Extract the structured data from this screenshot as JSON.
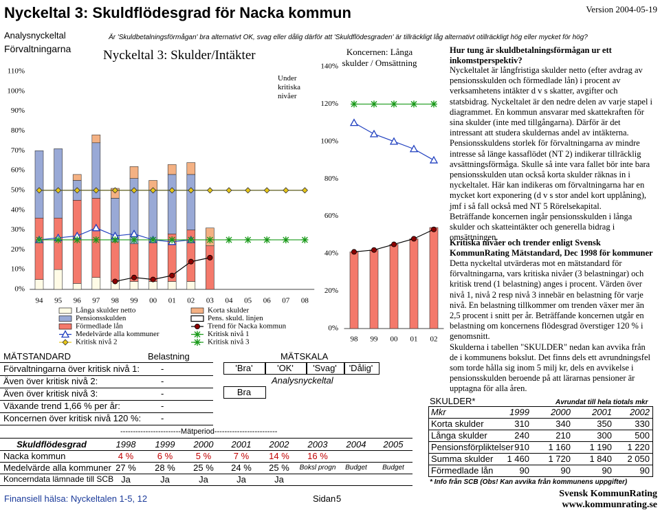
{
  "header": {
    "title": "Nyckeltal 3: Skuldflödesgrad för Nacka kommun",
    "version": "Version 2004-05-19",
    "category": "Analysnyckeltal",
    "question": "Är 'Skuldbetalningsförmågan' bra alternativt OK, svag eller dålig därför att 'Skuldflödesgraden' är tillräckligt låg alternativt otillräckligt hög eller mycket för hög?",
    "section": "Förvaltningarna"
  },
  "chart_data": [
    {
      "type": "bar",
      "title": "Nyckeltal 3: Skulder/Intäkter",
      "annotation": "Under kritiska nivåer",
      "categories": [
        "94",
        "95",
        "96",
        "97",
        "98",
        "99",
        "00",
        "01",
        "02",
        "03",
        "04",
        "05",
        "06",
        "07",
        "08"
      ],
      "ylim": [
        0,
        110
      ],
      "yticks": [
        {
          "value": 0,
          "label": "0%"
        },
        {
          "value": 10,
          "label": "10%"
        },
        {
          "value": 20,
          "label": "20%"
        },
        {
          "value": 30,
          "label": "30%"
        },
        {
          "value": 40,
          "label": "40%"
        },
        {
          "value": 50,
          "label": "50%"
        },
        {
          "value": 60,
          "label": "60%"
        },
        {
          "value": 70,
          "label": "70%"
        },
        {
          "value": 80,
          "label": "80%"
        },
        {
          "value": 90,
          "label": "90%"
        },
        {
          "value": 100,
          "label": "100%"
        },
        {
          "value": 110,
          "label": "110%"
        }
      ],
      "grid": false,
      "legend": "bottom",
      "series": [
        {
          "name": "Långa skulder netto",
          "kind": "bar",
          "color": "#fffbe6",
          "values": [
            5,
            10,
            3,
            6,
            4,
            4,
            4,
            4,
            4,
            0,
            null,
            null,
            null,
            null,
            null
          ]
        },
        {
          "name": "Förmedlade lån",
          "kind": "bar",
          "color": "#f4796b",
          "values": [
            31,
            26,
            42,
            40,
            20,
            19,
            20,
            24,
            26,
            22,
            null,
            null,
            null,
            null,
            null
          ]
        },
        {
          "name": "Pensionsskulden",
          "kind": "bar",
          "color": "#99a9d6",
          "values": [
            34,
            35,
            10,
            28,
            22,
            33,
            26,
            30,
            28,
            0,
            null,
            null,
            null,
            null,
            null
          ]
        },
        {
          "name": "Korta skulder",
          "kind": "bar",
          "color": "#f4b183",
          "values": [
            0,
            0,
            3,
            4,
            5,
            6,
            5,
            5,
            6,
            9,
            null,
            null,
            null,
            null,
            null
          ]
        },
        {
          "name": "Pens. skuld. linjen",
          "kind": "line",
          "color": "#000000",
          "values": [
            null,
            null,
            null,
            null,
            null,
            null,
            null,
            null,
            null,
            null,
            null,
            null,
            null,
            null,
            null
          ]
        },
        {
          "name": "Medelvärde alla kommuner",
          "kind": "line",
          "marker": "triangle",
          "color": "#1f3fbf",
          "values": [
            25,
            26,
            27,
            31,
            27,
            28,
            25,
            24,
            25,
            null,
            null,
            null,
            null,
            null,
            null
          ]
        },
        {
          "name": "Trend för Nacka kommun",
          "kind": "line",
          "marker": "circle",
          "color": "#8b0000",
          "values": [
            null,
            null,
            null,
            null,
            4,
            6,
            5,
            7,
            14,
            16,
            null,
            null,
            null,
            null,
            null
          ]
        },
        {
          "name": "Kritisk nivå 1",
          "kind": "line",
          "marker": "star",
          "color": "#1a9a1a",
          "values": [
            25,
            25,
            25,
            25,
            25,
            25,
            25,
            25,
            25,
            25,
            25,
            25,
            25,
            25,
            25
          ]
        },
        {
          "name": "Kritisk nivå 2",
          "kind": "line",
          "marker": "diamond",
          "color": "#e6c619",
          "values": [
            50,
            50,
            50,
            50,
            50,
            50,
            50,
            50,
            50,
            50,
            50,
            50,
            50,
            50,
            50
          ]
        },
        {
          "name": "Kritisk nivå 3",
          "kind": "line",
          "marker": "star",
          "color": "#1a9a1a",
          "values": [
            null,
            null,
            null,
            null,
            null,
            null,
            null,
            null,
            null,
            null,
            null,
            null,
            null,
            null,
            null
          ]
        }
      ]
    },
    {
      "type": "bar",
      "title": "Koncernen: Långa skulder / Omsättning",
      "categories": [
        "98",
        "99",
        "00",
        "01",
        "02"
      ],
      "ylim": [
        0,
        140
      ],
      "yticks": [
        {
          "value": 0,
          "label": "0%"
        },
        {
          "value": 20,
          "label": "20%"
        },
        {
          "value": 40,
          "label": "40%"
        },
        {
          "value": 60,
          "label": "60%"
        },
        {
          "value": 80,
          "label": "80%"
        },
        {
          "value": 100,
          "label": "100%"
        },
        {
          "value": 120,
          "label": "120%"
        },
        {
          "value": 140,
          "label": "140%"
        }
      ],
      "grid": false,
      "series": [
        {
          "kind": "bar",
          "color": "#f4796b",
          "values": [
            41,
            42,
            45,
            48,
            54
          ]
        },
        {
          "kind": "line",
          "marker": "circle",
          "color": "#8b0000",
          "values": [
            41,
            42,
            45,
            48,
            53
          ]
        },
        {
          "kind": "line",
          "marker": "triangle",
          "color": "#1f3fbf",
          "values": [
            110,
            104,
            100,
            96,
            90
          ]
        },
        {
          "kind": "line",
          "marker": "star",
          "color": "#1a9a1a",
          "values": [
            120,
            120,
            120,
            120,
            120
          ]
        }
      ]
    }
  ],
  "matstandard": {
    "columns": [
      "MÄTSTANDARD",
      "Belastning",
      "MÄTSKALA"
    ],
    "rows": [
      [
        "Förvaltningarna över kritisk nivå 1:",
        "-"
      ],
      [
        "Även över kritisk nivå 2:",
        "-"
      ],
      [
        "Även över kritisk nivå 3:",
        "-"
      ],
      [
        "Växande trend 1,66 % per år:",
        "-"
      ],
      [
        "Koncernen över kritisk nivå 120 %:",
        "-"
      ]
    ],
    "scale": [
      "'Bra'",
      "'OK'",
      "'Svag'",
      "'Dålig'"
    ],
    "scale_label": "Analysnyckeltal",
    "result": "Bra"
  },
  "period": {
    "caption": "------------------------Mätperiod-------------------------",
    "header": [
      "Skuldflödesgrad",
      "1998",
      "1999",
      "2000",
      "2001",
      "2002",
      "2003",
      "2004",
      "2005"
    ],
    "rows": [
      [
        "Nacka kommun",
        "4 %",
        "6 %",
        "5 %",
        "7 %",
        "14 %",
        "16 %"
      ],
      [
        "Medelvärde alla kommuner",
        "27 %",
        "28 %",
        "25 %",
        "24 %",
        "25 %",
        "Boksl progn",
        "Budget",
        "Budget"
      ],
      [
        "Koncerndata lämnade till SCB",
        "Ja",
        "Ja",
        "Ja",
        "Ja",
        "Ja"
      ]
    ]
  },
  "text": {
    "heading1": "Hur tung är skuldbetalningsförmågan ur ett inkomstperspektiv?",
    "body1": [
      "Nyckeltalet är långfristiga skulder netto (efter avdrag av pensionsskulden och förmedlade lån) i procent av verksamhetens intäkter d v s skatter, avgifter och statsbidrag. Nyckeltalet är den nedre delen av varje stapel i diagrammet. En kommun ansvarar med skattekraften för sina skulder (inte med tillgångarna). Därför är det intressant att studera skuldernas andel av intäkterna. Pensionsskuldens storlek för förvaltningarna av mindre intresse så länge kassaflödet (NT 2) indikerar tillräcklig avsättningsförmåga. Skulle så inte vara fallet bör inte bara pensionsskulden utan också korta skulder räknas in i nyckeltalet. Här kan indikeras om förvaltningarna har en mycket kort exponering (d v s stor andel kort upplåning), jmf i så fall också med NT 5 Rörelsekapital.",
      "Beträffande koncernen ingår pensionsskulden i långa skulder och skatteintäkter och generella bidrag i omsättningen."
    ],
    "heading2": "Kritiska nivåer och trender enligt Svensk KommunRating Mätstandard, Dec 1998 för kommuner",
    "body2": [
      "Detta nyckeltal utvärderas mot en mätstandard för förvaltningarna, vars kritiska nivåer (3 belastningar) och kritisk trend (1 belastning) anges i procent. Värden över nivå 1, nivå 2 resp nivå 3 innebär en belastning för varje nivå. En belastning tillkommer om trenden växer mer än 2,5 procent i snitt per år. Beträffande koncernen utgår en belastning om koncernens flödesgrad överstiger 120 % i genomsnitt.",
      "Skulderna i tabellen \"SKULDER\" nedan kan avvika från de i kommunens bokslut. Det finns dels ett avrundningsfel som torde hålla sig inom 5 milj kr, dels en avvikelse i pensionsskulden beroende på att lärarnas pensioner är upptagna för alla åren."
    ]
  },
  "skulder": {
    "title": "SKULDER*",
    "note": "Avrundat till hela tiotals mkr",
    "header": [
      "Mkr",
      "1999",
      "2000",
      "2001",
      "2002"
    ],
    "rows": [
      [
        "Korta skulder",
        "310",
        "340",
        "350",
        "330"
      ],
      [
        "Långa skulder",
        "240",
        "210",
        "300",
        "500"
      ],
      [
        "Pensionsförpliktelser",
        "910",
        "1 160",
        "1 190",
        "1 220"
      ],
      [
        "Summa skulder",
        "1 460",
        "1 720",
        "1 840",
        "2 050"
      ],
      [
        "Förmedlade lån",
        "90",
        "90",
        "90",
        "90"
      ]
    ],
    "footnote": "* Info från SCB (Obs! Kan avvika från kommunens uppgifter)"
  },
  "footer": {
    "left": "Finansiell hälsa: Nyckeltalen 1-5, 12",
    "page_label": "Sidan",
    "page": "5",
    "brand": "Svensk KommunRating",
    "url": "www.kommunrating.se"
  }
}
